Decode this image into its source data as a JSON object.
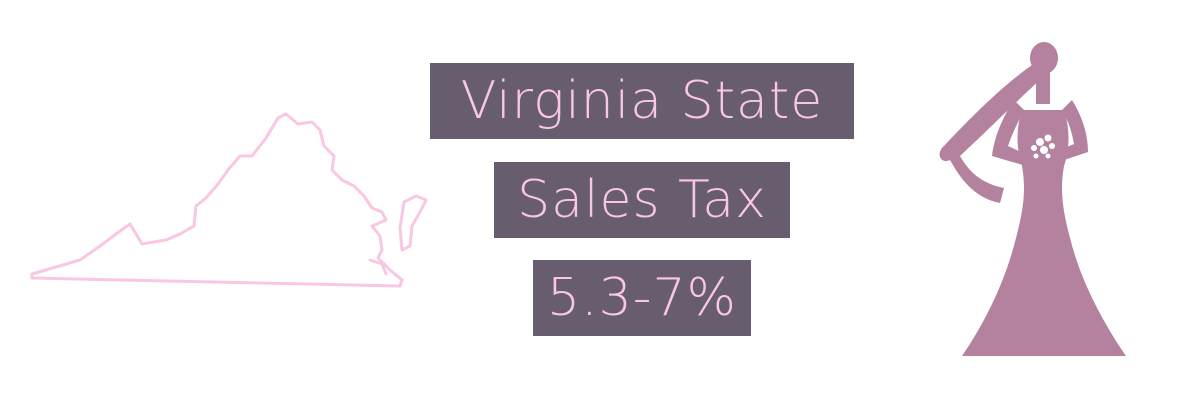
{
  "title": {
    "line1": "Virginia State",
    "line2": "Sales Tax",
    "line3": "5.3-7%"
  },
  "colors": {
    "label_background": "#675d6e",
    "label_text": "#f9c7e4",
    "outline": "#f9c7e4",
    "bride": "#b4829f"
  },
  "icons": {
    "left": "virginia-state-outline-icon",
    "right": "bride-in-gown-icon"
  }
}
